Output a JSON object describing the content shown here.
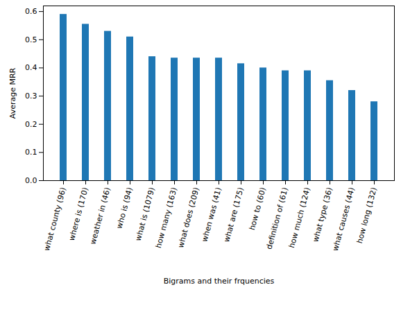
{
  "chart_data": {
    "type": "bar",
    "x_label": "Bigrams and their frquencies",
    "y_label": "Average MRR",
    "categories": [
      "what county (96)",
      "where is (170)",
      "weather in (46)",
      "who is (94)",
      "what is (1079)",
      "how many (163)",
      "what does (209)",
      "when was (41)",
      "what are (175)",
      "how to (60)",
      "definition of (61)",
      "how much (124)",
      "what type (36)",
      "what causes (44)",
      "how long (132)"
    ],
    "values": [
      0.59,
      0.555,
      0.53,
      0.51,
      0.44,
      0.435,
      0.435,
      0.435,
      0.415,
      0.4,
      0.39,
      0.39,
      0.355,
      0.32,
      0.28
    ],
    "color": "#1f77b4",
    "ylim": [
      0,
      0.62
    ],
    "yticks": [
      {
        "value": 0,
        "label": "0.0"
      },
      0.1,
      0.2,
      0.3,
      0.4,
      0.5,
      0.6
    ],
    "grid": false
  }
}
